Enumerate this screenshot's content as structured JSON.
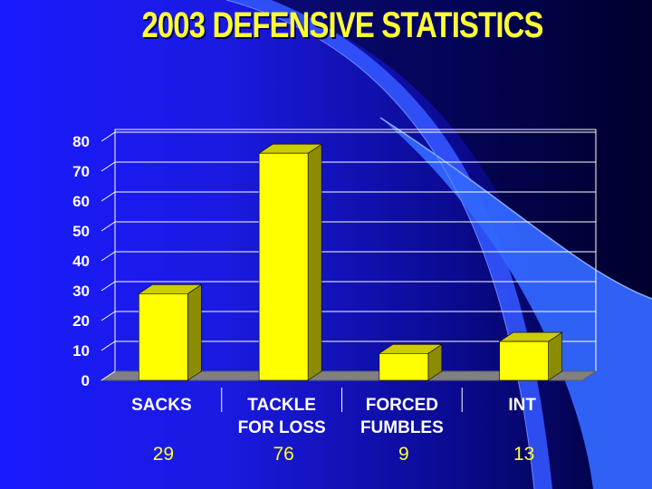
{
  "slide": {
    "title": "2003 DEFENSIVE STATISTICS"
  },
  "colors": {
    "bar_face": "#ffff00",
    "bar_side": "#8c8c00",
    "bar_top": "#cccc00",
    "value_text": "#ffff33",
    "title_text": "#ffff33"
  },
  "chart_data": {
    "type": "bar",
    "title": "",
    "xlabel": "",
    "ylabel": "",
    "categories": [
      [
        "SACKS"
      ],
      [
        "TACKLE",
        "FOR LOSS"
      ],
      [
        "FORCED",
        "FUMBLES"
      ],
      [
        "INT"
      ]
    ],
    "values": [
      29,
      76,
      9,
      13
    ],
    "value_labels": [
      "29",
      "76",
      "9",
      "13"
    ],
    "yticks": [
      "0",
      "10",
      "20",
      "30",
      "40",
      "50",
      "60",
      "70",
      "80"
    ],
    "ylim": [
      0,
      80
    ],
    "grid": true,
    "legend": "none"
  }
}
